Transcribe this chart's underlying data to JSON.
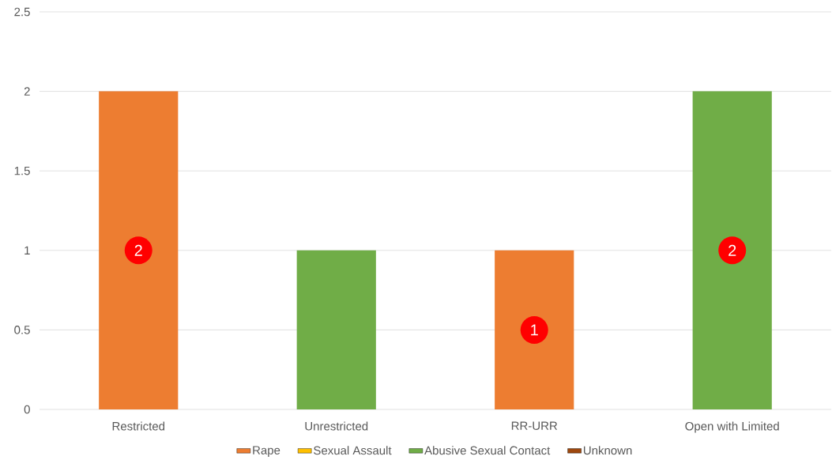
{
  "chart_data": {
    "type": "bar",
    "stacked": true,
    "categories": [
      "Restricted",
      "Unrestricted",
      "RR-URR",
      "Open with Limited"
    ],
    "series": [
      {
        "name": "Rape",
        "color": "#ed7d31",
        "values": [
          2,
          null,
          1,
          null
        ],
        "value_labels": [
          "2",
          null,
          "1",
          null
        ]
      },
      {
        "name": "Sexual Assault",
        "color": "#ffc000",
        "values": [
          null,
          null,
          null,
          null
        ]
      },
      {
        "name": "Abusive Sexual Contact",
        "color": "#70ad47",
        "values": [
          null,
          1,
          null,
          2
        ],
        "value_labels": [
          null,
          null,
          null,
          "2"
        ]
      },
      {
        "name": "Unknown",
        "color": "#9e480e",
        "values": [
          null,
          null,
          null,
          null
        ]
      }
    ],
    "ylim": [
      0,
      2.5
    ],
    "yticks": [
      0,
      0.5,
      1,
      1.5,
      2,
      2.5
    ],
    "grid": "y",
    "legend": "bottom"
  }
}
